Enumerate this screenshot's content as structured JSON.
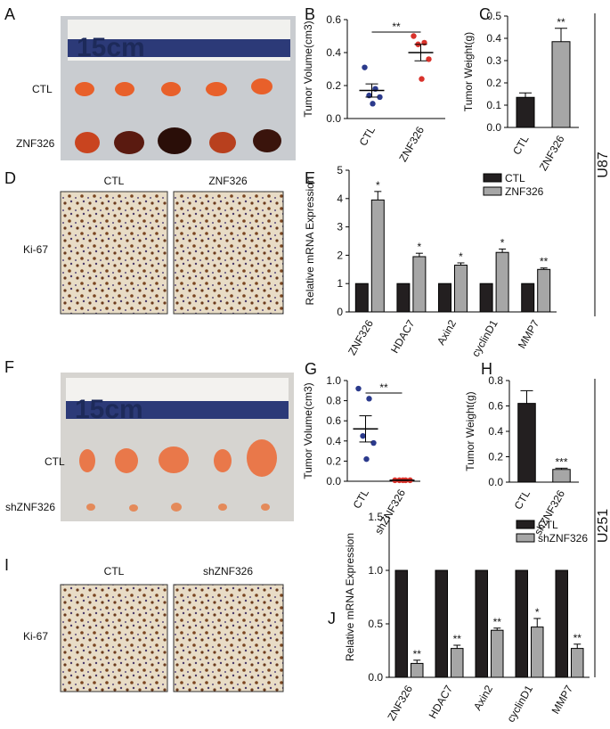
{
  "panel_letters": [
    "A",
    "B",
    "C",
    "D",
    "E",
    "F",
    "G",
    "H",
    "I",
    "J"
  ],
  "cell_lines": [
    "U87",
    "U251"
  ],
  "photos": {
    "A": {
      "scale": "15cm",
      "rows": [
        "CTL",
        "ZNF326"
      ]
    },
    "D": {
      "columns": [
        "CTL",
        "ZNF326"
      ],
      "row": "Ki-67"
    },
    "F": {
      "scale": "15cm",
      "rows": [
        "CTL",
        "shZNF326"
      ]
    },
    "I": {
      "columns": [
        "CTL",
        "shZNF326"
      ],
      "row": "Ki-67"
    }
  },
  "chart_data": [
    {
      "type": "dot",
      "y_label": "Tumor Volume(cm3)",
      "categories": [
        "CTL",
        "ZNF326"
      ],
      "points": [
        [
          0.31,
          0.18,
          0.14,
          0.13,
          0.09
        ],
        [
          0.5,
          0.46,
          0.45,
          0.36,
          0.24
        ]
      ],
      "point_colors": [
        "#2b3a8c",
        "#d9322b"
      ],
      "means": [
        0.17,
        0.4
      ],
      "errors": [
        0.04,
        0.05
      ],
      "annotation": "**",
      "ylim": [
        0,
        0.6
      ],
      "yticks": [
        {
          "value": 0,
          "label": "0.0"
        },
        0.2,
        0.4,
        0.6
      ]
    },
    {
      "type": "bar",
      "y_label": "Tumor Weight(g)",
      "categories": [
        "CTL",
        "ZNF326"
      ],
      "values": [
        0.135,
        0.385
      ],
      "errors": [
        0.02,
        0.06
      ],
      "colors": [
        "#231f20",
        "#a6a6a6"
      ],
      "annotations": [
        null,
        "**"
      ],
      "ylim": [
        0,
        0.5
      ],
      "yticks": [
        {
          "value": 0,
          "label": "0.0"
        },
        0.1,
        0.2,
        0.3,
        0.4,
        0.5
      ]
    },
    {
      "type": "grouped",
      "y_label": "Relative mRNA Expression",
      "categories": [
        "ZNF326",
        "HDAC7",
        "Axin2",
        "cyclinD1",
        "MMP7"
      ],
      "series": [
        {
          "name": "CTL",
          "color": "#231f20",
          "values": [
            1,
            1,
            1,
            1,
            1
          ]
        },
        {
          "name": "ZNF326",
          "color": "#a6a6a6",
          "values": [
            3.95,
            1.95,
            1.65,
            2.1,
            1.5
          ],
          "errors": [
            0.3,
            0.12,
            0.08,
            0.12,
            0.05
          ]
        }
      ],
      "annotations": [
        "*",
        "*",
        "*",
        "*",
        "**"
      ],
      "legend": "upper right",
      "ylim": [
        0,
        5
      ],
      "yticks": [
        0,
        1,
        2,
        3,
        4,
        5
      ]
    },
    {
      "type": "dot",
      "y_label": "Tumor Volume(cm3)",
      "categories": [
        "CTL",
        "shZNF326"
      ],
      "points": [
        [
          0.92,
          0.82,
          0.45,
          0.38,
          0.22
        ],
        [
          0.01,
          0.01,
          0.01,
          0.01,
          0.01
        ]
      ],
      "point_colors": [
        "#2b3a8c",
        "#d9322b"
      ],
      "means": [
        0.52,
        0.01
      ],
      "errors": [
        0.13,
        0.002
      ],
      "annotation": "**",
      "ylim": [
        0,
        1
      ],
      "yticks": [
        {
          "value": 0,
          "label": "0.0"
        },
        0.2,
        0.4,
        0.6,
        0.8,
        {
          "value": 1,
          "label": "1.0"
        }
      ]
    },
    {
      "type": "bar",
      "y_label": "Tumor Weight(g)",
      "categories": [
        "CTL",
        "shZNF326"
      ],
      "values": [
        0.62,
        0.1
      ],
      "errors": [
        0.1,
        0.01
      ],
      "colors": [
        "#231f20",
        "#a6a6a6"
      ],
      "annotations": [
        null,
        "***"
      ],
      "ylim": [
        0,
        0.8
      ],
      "yticks": [
        {
          "value": 0,
          "label": "0.0"
        },
        0.2,
        0.4,
        0.6,
        0.8
      ]
    },
    {
      "type": "grouped",
      "y_label": "Relative mRNA Expression",
      "categories": [
        "ZNF326",
        "HDAC7",
        "Axin2",
        "cyclinD1",
        "MMP7"
      ],
      "series": [
        {
          "name": "CTL",
          "color": "#231f20",
          "values": [
            1,
            1,
            1,
            1,
            1
          ]
        },
        {
          "name": "shZNF326",
          "color": "#a6a6a6",
          "values": [
            0.13,
            0.27,
            0.44,
            0.47,
            0.27
          ],
          "errors": [
            0.03,
            0.03,
            0.02,
            0.08,
            0.04
          ]
        }
      ],
      "annotations": [
        "**",
        "**",
        "**",
        "*",
        "**"
      ],
      "legend": "upper right",
      "ylim": [
        0,
        1.5
      ],
      "yticks": [
        {
          "value": 0,
          "label": "0.0"
        },
        0.5,
        {
          "value": 1,
          "label": "1.0"
        },
        1.5
      ]
    }
  ]
}
